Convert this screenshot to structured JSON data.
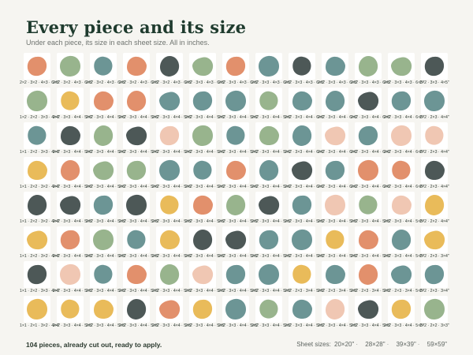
{
  "title": "Every piece and its size",
  "subtitle": "Under each piece, its size in each sheet size. All in inches.",
  "footer": {
    "summary": "104 pieces, already cut out, ready to apply.",
    "sheet_sizes_label": "Sheet sizes:",
    "sheet_sizes": [
      "20×20\"",
      "28×28\"",
      "39×39\"",
      "59×59\""
    ]
  },
  "colors": {
    "orange": "#e0875f",
    "sage": "#8fae83",
    "teal": "#5f8c8c",
    "charcoal": "#3e4a49",
    "mustard": "#e7b54c",
    "blush": "#efc2ad"
  },
  "rows": [
    {
      "pieces": [
        "orange",
        "sage",
        "teal",
        "orange",
        "charcoal",
        "sage",
        "orange",
        "teal",
        "charcoal",
        "teal",
        "sage",
        "sage",
        "charcoal"
      ],
      "sizes": [
        "2×2 · 3×2 · 4×3 · 6×5\"",
        "2×2 · 3×2 · 4×3 · 6×5\"",
        "2×2 · 3×2 · 4×3 · 6×5\"",
        "2×2 · 3×2 · 4×3 · 6×5\"",
        "2×2 · 3×2 · 4×3 · 6×5\"",
        "2×2 · 3×3 · 4×3 · 6×5\"",
        "2×2 · 3×3 · 4×3 · 6×5\"",
        "2×2 · 3×3 · 4×3 · 6×5\"",
        "2×2 · 3×3 · 4×3 · 6×5\"",
        "2×2 · 3×3 · 4×3 · 6×5\"",
        "2×2 · 3×3 · 4×3 · 6×5\"",
        "2×2 · 3×3 · 4×3 · 6×5\"",
        "2×2 · 3×3 · 4×5\""
      ]
    },
    {
      "pieces": [
        "sage",
        "mustard",
        "orange",
        "orange",
        "teal",
        "teal",
        "teal",
        "sage",
        "teal",
        "teal",
        "charcoal",
        "teal",
        "teal"
      ],
      "sizes": [
        "1×2 · 2×2 · 3×3 · 4×4\"",
        "2×2 · 3×3 · 4×4 · 5×6\"",
        "2×2 · 3×3 · 4×4 · 5×6\"",
        "2×2 · 3×3 · 4×4 · 5×6\"",
        "2×2 · 3×3 · 4×4 · 5×6\"",
        "2×2 · 3×3 · 4×4 · 5×6\"",
        "2×2 · 3×3 · 4×4 · 5×6\"",
        "2×2 · 3×3 · 4×4 · 5×6\"",
        "2×2 · 3×3 · 4×4 · 6×6\"",
        "2×2 · 3×3 · 4×4 · 6×6\"",
        "2×2 · 3×3 · 4×4 · 6×6\"",
        "2×2 · 3×3 · 4×4 · 6×6\"",
        "2×2 · 2×3 · 4×4\""
      ]
    },
    {
      "pieces": [
        "teal",
        "charcoal",
        "sage",
        "charcoal",
        "blush",
        "sage",
        "teal",
        "sage",
        "teal",
        "blush",
        "teal",
        "blush",
        "blush"
      ],
      "sizes": [
        "1×1 · 2×2 · 3×3 · 4×4\"",
        "2×2 · 3×3 · 4×4 · 5×6\"",
        "2×2 · 3×3 · 4×4 · 5×6\"",
        "2×2 · 3×3 · 4×4 · 5×6\"",
        "2×2 · 3×3 · 4×4 · 5×6\"",
        "2×2 · 3×3 · 4×4 · 5×6\"",
        "2×2 · 3×3 · 4×4 · 5×6\"",
        "2×2 · 3×3 · 4×4 · 5×6\"",
        "2×2 · 3×3 · 4×4 · 6×6\"",
        "2×2 · 3×3 · 4×4 · 6×6\"",
        "2×2 · 3×3 · 4×4 · 6×6\"",
        "2×2 · 3×3 · 4×4 · 6×6\"",
        "2×2 · 2×3 · 4×4\""
      ]
    },
    {
      "pieces": [
        "mustard",
        "orange",
        "sage",
        "sage",
        "teal",
        "teal",
        "orange",
        "teal",
        "charcoal",
        "teal",
        "orange",
        "orange",
        "charcoal"
      ],
      "sizes": [
        "1×1 · 2×2 · 3×2 · 4×4\"",
        "2×2 · 3×3 · 4×4 · 5×6\"",
        "2×2 · 3×3 · 4×4 · 5×6\"",
        "2×2 · 3×3 · 4×4 · 5×6\"",
        "2×2 · 3×3 · 4×4 · 5×6\"",
        "2×2 · 3×3 · 4×4 · 5×6\"",
        "2×2 · 3×3 · 4×4 · 5×6\"",
        "2×2 · 3×3 · 4×4 · 5×6\"",
        "2×2 · 3×3 · 4×4 · 6×6\"",
        "2×2 · 3×3 · 4×4 · 6×6\"",
        "2×2 · 3×3 · 4×4 · 6×6\"",
        "2×2 · 3×3 · 4×4 · 6×6\"",
        "2×2 · 2×3 · 4×4\""
      ]
    },
    {
      "pieces": [
        "charcoal",
        "charcoal",
        "teal",
        "charcoal",
        "mustard",
        "orange",
        "sage",
        "charcoal",
        "teal",
        "blush",
        "sage",
        "blush",
        "mustard"
      ],
      "sizes": [
        "1×1 · 2×2 · 3×2 · 4×4\"",
        "2×2 · 3×3 · 4×4 · 5×5\"",
        "2×2 · 3×3 · 4×4 · 5×5\"",
        "2×2 · 3×3 · 4×4 · 5×5\"",
        "2×2 · 3×3 · 4×4 · 5×5\"",
        "2×2 · 3×3 · 4×4 · 5×5\"",
        "2×2 · 3×3 · 4×4 · 5×5\"",
        "2×2 · 3×3 · 4×4 · 5×5\"",
        "2×2 · 3×3 · 4×4 · 5×5\"",
        "2×2 · 3×3 · 4×4 · 5×5\"",
        "2×2 · 3×3 · 4×4 · 5×5\"",
        "2×2 · 3×3 · 4×4 · 5×5\"",
        "2×2 · 2×2 · 4×4\""
      ]
    },
    {
      "pieces": [
        "mustard",
        "orange",
        "sage",
        "teal",
        "mustard",
        "charcoal",
        "charcoal",
        "teal",
        "teal",
        "mustard",
        "orange",
        "teal",
        "mustard"
      ],
      "sizes": [
        "1×1 · 2×2 · 3×2 · 4×4\"",
        "2×2 · 3×3 · 4×4 · 5×5\"",
        "2×2 · 3×3 · 4×4 · 5×5\"",
        "2×2 · 3×3 · 4×4 · 5×5\"",
        "2×2 · 3×3 · 4×4 · 5×5\"",
        "2×2 · 3×3 · 4×4 · 5×5\"",
        "2×2 · 3×3 · 4×4 · 5×5\"",
        "2×2 · 3×3 · 4×4 · 5×5\"",
        "2×2 · 3×3 · 4×4 · 5×5\"",
        "2×2 · 3×3 · 4×4 · 5×5\"",
        "2×2 · 3×3 · 4×4 · 5×5\"",
        "2×2 · 3×3 · 4×4 · 5×5\"",
        "2×2 · 2×3 · 3×4\""
      ]
    },
    {
      "pieces": [
        "charcoal",
        "blush",
        "teal",
        "orange",
        "sage",
        "blush",
        "teal",
        "teal",
        "mustard",
        "teal",
        "orange",
        "teal",
        "teal"
      ],
      "sizes": [
        "1×1 · 2×2 · 3×3 · 4×4\"",
        "2×2 · 3×3 · 4×4 · 5×5\"",
        "2×2 · 3×3 · 4×4 · 5×5\"",
        "2×2 · 3×3 · 4×4 · 5×5\"",
        "2×2 · 3×3 · 4×4 · 5×5\"",
        "2×2 · 3×3 · 4×4 · 5×5\"",
        "2×2 · 3×3 · 4×4 · 5×5\"",
        "2×2 · 3×3 · 4×4 · 5×5\"",
        "2×2 · 2×3 · 3×4 · 5×5\"",
        "2×2 · 2×3 · 3×4 · 5×5\"",
        "2×2 · 2×3 · 3×4 · 5×5\"",
        "2×2 · 2×3 · 3×4 · 5×5\"",
        "2×2 · 2×3 · 3×4\""
      ]
    },
    {
      "pieces": [
        "mustard",
        "mustard",
        "mustard",
        "charcoal",
        "orange",
        "mustard",
        "teal",
        "sage",
        "teal",
        "blush",
        "charcoal",
        "mustard",
        "sage"
      ],
      "sizes": [
        "1×1 · 2×1 · 3×2 · 4×4\"",
        "2×2 · 3×3 · 4×4 · 5×5\"",
        "2×2 · 3×3 · 4×4 · 5×5\"",
        "2×2 · 3×3 · 4×4 · 5×5\"",
        "2×2 · 3×3 · 4×4 · 5×5\"",
        "2×2 · 3×3 · 4×4 · 5×5\"",
        "2×2 · 3×3 · 4×4 · 5×5\"",
        "2×2 · 3×3 · 4×4 · 5×5\"",
        "2×2 · 3×3 · 4×4 · 5×5\"",
        "2×2 · 3×3 · 4×4 · 5×5\"",
        "2×2 · 3×3 · 4×4 · 5×5\"",
        "2×2 · 3×3 · 4×4 · 5×5\"",
        "2×2 · 2×2 · 3×3\""
      ]
    }
  ]
}
